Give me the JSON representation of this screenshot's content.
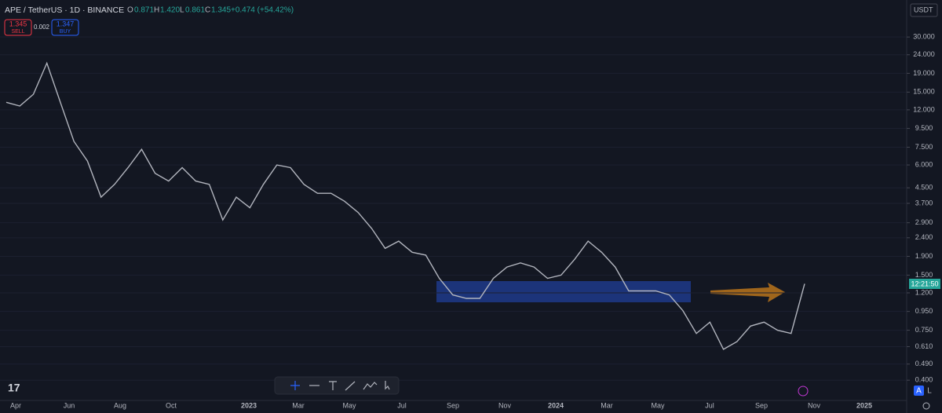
{
  "header": {
    "symbol": "APE / TetherUS · 1D · BINANCE",
    "open_label": "O",
    "open": "0.871",
    "high_label": "H",
    "high": "1.420",
    "low_label": "L",
    "low": "0.861",
    "close_label": "C",
    "close": "1.345",
    "change": "+0.474 (+54.42%)"
  },
  "trade": {
    "sell_price": "1.345",
    "sell": "SELL",
    "spread": "0.002",
    "buy_price": "1.347",
    "buy": "BUY"
  },
  "currency": "USDT",
  "countdown": "12:21:50",
  "scale_buttons": [
    "A",
    "L"
  ],
  "x_labels": [
    "Apr",
    "Jun",
    "Aug",
    "Oct",
    "2023",
    "Mar",
    "May",
    "Jul",
    "Sep",
    "Nov",
    "2024",
    "Mar",
    "May",
    "Jul",
    "Sep",
    "Nov",
    "2025"
  ],
  "chart": {
    "log_scale": true,
    "ylim": [
      0.31,
      47.8
    ],
    "yticks": [
      {
        "value": 30,
        "label": "30.000"
      },
      {
        "value": 24,
        "label": "24.000"
      },
      {
        "value": 19,
        "label": "19.000"
      },
      {
        "value": 15,
        "label": "15.000"
      },
      {
        "value": 12,
        "label": "12.000"
      },
      {
        "value": 9.5,
        "label": "9.500"
      },
      {
        "value": 7.5,
        "label": "7.500"
      },
      {
        "value": 6,
        "label": "6.000"
      },
      {
        "value": 4.5,
        "label": "4.500"
      },
      {
        "value": 3.7,
        "label": "3.700"
      },
      {
        "value": 2.9,
        "label": "2.900"
      },
      {
        "value": 2.4,
        "label": "2.400"
      },
      {
        "value": 1.9,
        "label": "1.900"
      },
      {
        "value": 1.5,
        "label": "1.500"
      },
      {
        "value": 1.2,
        "label": "1.200"
      },
      {
        "value": 0.95,
        "label": "0.950"
      },
      {
        "value": 0.75,
        "label": "0.750"
      },
      {
        "value": 0.61,
        "label": "0.610"
      },
      {
        "value": 0.49,
        "label": "0.490"
      },
      {
        "value": 0.4,
        "label": "0.400"
      }
    ],
    "color": "#b2b5be",
    "values": [
      13.2,
      12.6,
      14.6,
      21.6,
      13.2,
      8.07,
      6.3,
      4.0,
      4.7,
      5.8,
      7.3,
      5.4,
      4.9,
      5.8,
      4.9,
      4.7,
      3.0,
      4.0,
      3.5,
      4.7,
      6.0,
      5.8,
      4.7,
      4.2,
      4.2,
      3.8,
      3.3,
      2.7,
      2.1,
      2.3,
      2.0,
      1.93,
      1.44,
      1.17,
      1.12,
      1.12,
      1.44,
      1.66,
      1.75,
      1.66,
      1.44,
      1.5,
      1.83,
      2.3,
      2.0,
      1.66,
      1.23,
      1.23,
      1.23,
      1.17,
      0.96,
      0.72,
      0.83,
      0.59,
      0.65,
      0.79,
      0.83,
      0.75,
      0.72,
      1.345
    ]
  }
}
